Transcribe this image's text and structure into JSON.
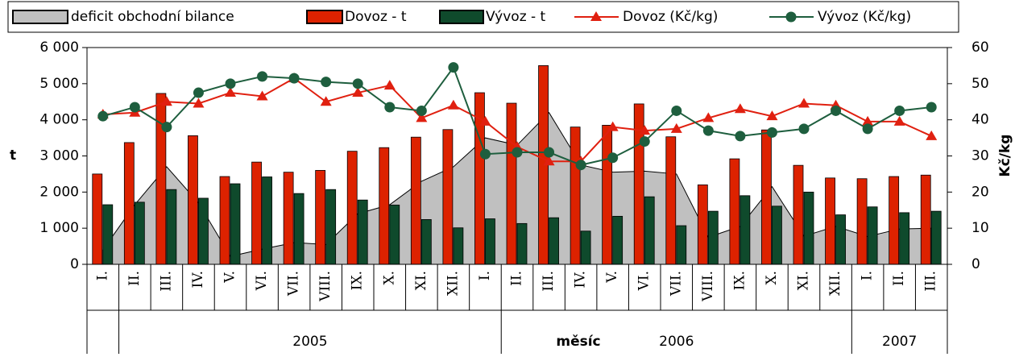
{
  "chart_data": {
    "type": "combo",
    "categories": [
      "I.",
      "II.",
      "III.",
      "IV.",
      "V.",
      "VI.",
      "VII.",
      "VIII.",
      "IX.",
      "X.",
      "XI.",
      "XII.",
      "I.",
      "II.",
      "III.",
      "IV.",
      "V.",
      "VI.",
      "VII.",
      "VIII.",
      "IX.",
      "X.",
      "XI.",
      "XII.",
      "I.",
      "II.",
      "III."
    ],
    "years": [
      "2005",
      "2006",
      "2007"
    ],
    "x_label": "měsíc",
    "y_label": "t",
    "y2_label": "Kč/kg",
    "ylim": [
      0,
      6000
    ],
    "yticks": [
      0,
      {
        "value": 1000,
        "label": "1 000"
      },
      {
        "value": 2000,
        "label": "2 000"
      },
      {
        "value": 3000,
        "label": "3 000"
      },
      {
        "value": 4000,
        "label": "4 000"
      },
      {
        "value": 5000,
        "label": "5 000"
      },
      {
        "value": 6000,
        "label": "6 000"
      }
    ],
    "y2lim": [
      0,
      60
    ],
    "y2ticks": [
      0,
      10,
      20,
      30,
      40,
      50,
      60
    ],
    "series": [
      {
        "name": "deficit obchodní bilance",
        "type": "area",
        "color": "#c0c0c0",
        "values": [
          400,
          1650,
          2700,
          1700,
          220,
          420,
          600,
          550,
          1400,
          1650,
          2300,
          2700,
          3500,
          3300,
          4200,
          2750,
          2550,
          2580,
          2500,
          750,
          1050,
          2150,
          780,
          1050,
          770,
          980,
          1000
        ]
      },
      {
        "name": "Dovoz - t",
        "type": "bar",
        "color": "#dd2200",
        "values": [
          2500,
          3370,
          4730,
          3560,
          2430,
          2830,
          2550,
          2600,
          3130,
          3230,
          3520,
          3730,
          4750,
          4460,
          5500,
          3800,
          3850,
          4440,
          3530,
          2200,
          2920,
          3720,
          2740,
          2390,
          2370,
          2430,
          2470
        ]
      },
      {
        "name": "Vývoz - t",
        "type": "bar",
        "color": "#0f4a2c",
        "values": [
          1650,
          1720,
          2070,
          1830,
          2230,
          2420,
          1960,
          2070,
          1780,
          1640,
          1240,
          1010,
          1260,
          1130,
          1290,
          920,
          1330,
          1870,
          1070,
          1470,
          1900,
          1610,
          2000,
          1370,
          1590,
          1430,
          1470
        ]
      },
      {
        "name": "Dovoz (Kč/kg)",
        "type": "line",
        "marker": "triangle",
        "axis": "y2",
        "color": "#e02010",
        "values": [
          41.5,
          42,
          45,
          44.5,
          47.5,
          46.5,
          51.5,
          45,
          47.5,
          49.5,
          40.5,
          44,
          39.5,
          32.5,
          28.5,
          28.5,
          38,
          37,
          37.5,
          40.5,
          43,
          41,
          44.5,
          44,
          39.5,
          39.5,
          35.5
        ]
      },
      {
        "name": "Vývoz (Kč/kg)",
        "type": "line",
        "marker": "circle",
        "axis": "y2",
        "color": "#1e5e3e",
        "values": [
          41,
          43.5,
          38,
          47.5,
          50,
          52,
          51.5,
          50.5,
          50,
          43.5,
          42.5,
          54.5,
          30.5,
          31,
          31,
          27.5,
          29.5,
          34,
          42.5,
          37,
          35.5,
          36.5,
          37.5,
          42.5,
          37.5,
          42.5,
          43.5
        ]
      }
    ]
  }
}
